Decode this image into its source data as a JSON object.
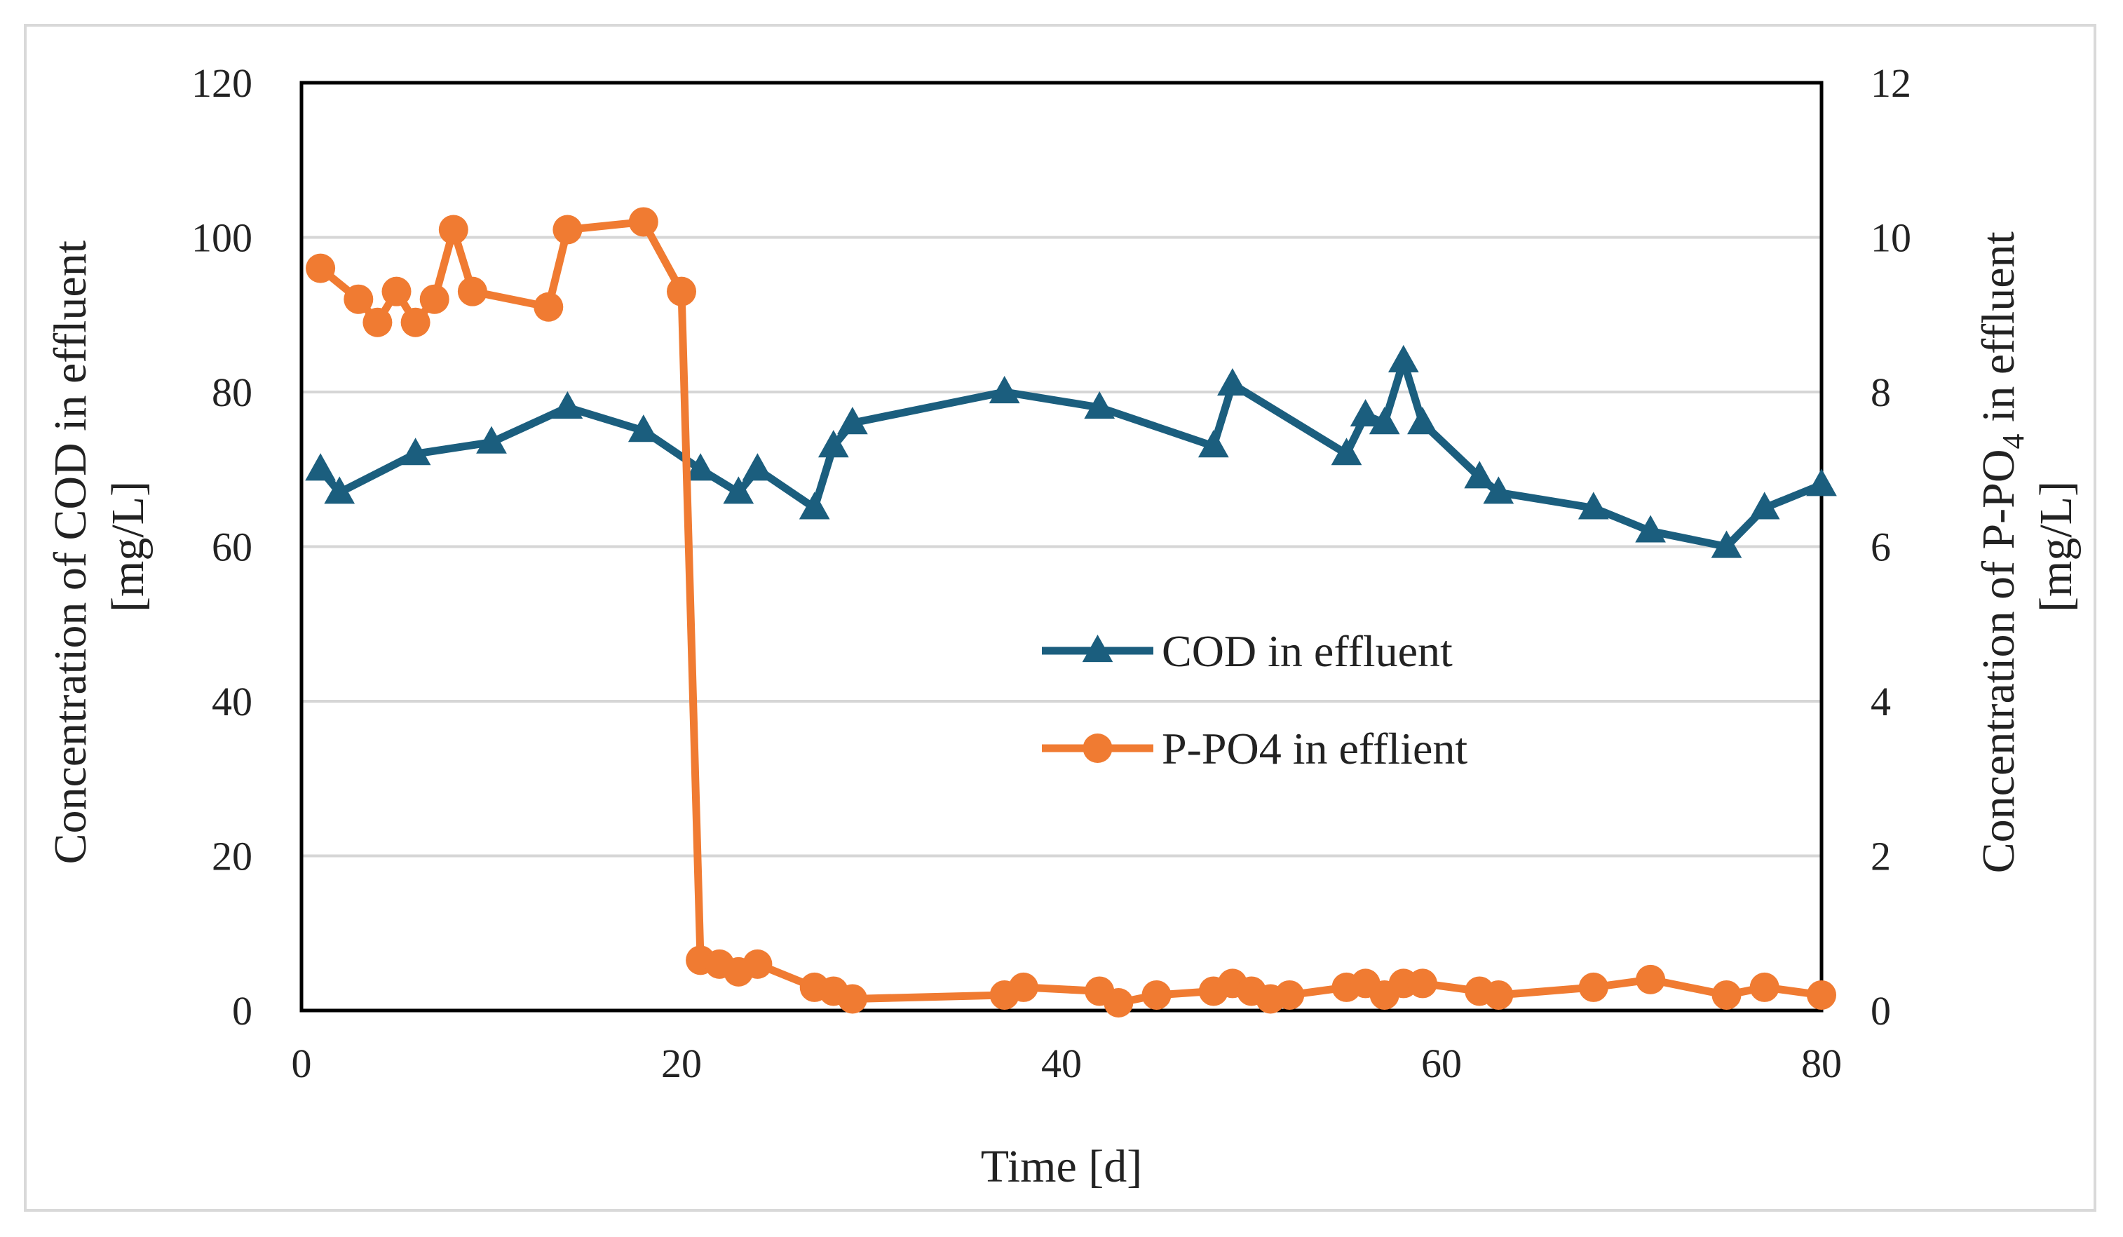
{
  "chart_data": {
    "type": "line",
    "xlabel": "Time [d]",
    "ylabel_left_line1": "Concentration of COD in  effluent",
    "ylabel_left_line2": "[mg/L]",
    "ylabel_right_prefix": "Concentration of P-PO",
    "ylabel_right_sub": "4",
    "ylabel_right_suffix": " in effluent",
    "ylabel_right_line2": "[mg/L]",
    "xlim": [
      0,
      80
    ],
    "ylim_left": [
      0,
      120
    ],
    "ylim_right": [
      0,
      12
    ],
    "xticks": [
      "0",
      "20",
      "40",
      "60",
      "80"
    ],
    "yticks_left": [
      "0",
      "20",
      "40",
      "60",
      "80",
      "100",
      "120"
    ],
    "yticks_right": [
      "0",
      "2",
      "4",
      "6",
      "8",
      "10",
      "12"
    ],
    "grid": "horizontal",
    "legend_position": "center-right",
    "series": [
      {
        "name": "COD in effluent",
        "axis": "left",
        "color": "#1b5e7e",
        "marker": "triangle",
        "x": [
          1,
          2,
          6,
          10,
          14,
          18,
          21,
          23,
          24,
          27,
          28,
          29,
          37,
          42,
          48,
          49,
          55,
          56,
          57,
          58,
          59,
          62,
          63,
          68,
          71,
          75,
          77,
          80
        ],
        "y": [
          70,
          67,
          72,
          73.5,
          78,
          75,
          70,
          67,
          70,
          65,
          73,
          76,
          80,
          78,
          73,
          81,
          72,
          77,
          76,
          84,
          76,
          69,
          67,
          65,
          62,
          60,
          65,
          68
        ]
      },
      {
        "name": "P-PO4 in efflient",
        "axis": "right",
        "color": "#f07b32",
        "marker": "circle",
        "x": [
          1,
          3,
          4,
          5,
          6,
          7,
          8,
          9,
          13,
          14,
          18,
          20,
          21,
          22,
          23,
          24,
          27,
          28,
          29,
          37,
          38,
          42,
          43,
          45,
          48,
          49,
          50,
          51,
          52,
          55,
          56,
          57,
          58,
          59,
          62,
          63,
          68,
          71,
          75,
          77,
          80
        ],
        "y": [
          9.6,
          9.2,
          8.9,
          9.3,
          8.9,
          9.2,
          10.1,
          9.3,
          9.1,
          10.1,
          10.2,
          9.3,
          0.65,
          0.6,
          0.5,
          0.6,
          0.3,
          0.25,
          0.15,
          0.2,
          0.3,
          0.25,
          0.1,
          0.2,
          0.25,
          0.35,
          0.25,
          0.15,
          0.2,
          0.3,
          0.35,
          0.2,
          0.35,
          0.35,
          0.25,
          0.2,
          0.3,
          0.4,
          0.2,
          0.3,
          0.2
        ]
      }
    ]
  }
}
